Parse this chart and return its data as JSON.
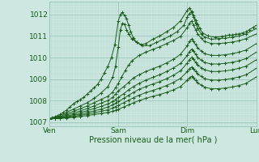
{
  "title": "",
  "xlabel": "Pression niveau de la mer( hPa )",
  "bg_color": "#cce8e0",
  "grid_minor_color": "#b8d8d0",
  "grid_major_color": "#99c4b8",
  "line_color": "#1a5c1a",
  "ylim": [
    1006.8,
    1012.6
  ],
  "xlim": [
    0.0,
    3.0
  ],
  "xtick_positions": [
    0,
    1,
    2,
    3
  ],
  "xtick_labels": [
    "Ven",
    "Sam",
    "Dim",
    "Lun"
  ],
  "ytick_positions": [
    1007,
    1008,
    1009,
    1010,
    1011,
    1012
  ],
  "series": [
    {
      "points": [
        [
          0.0,
          1007.15
        ],
        [
          0.04,
          1007.2
        ],
        [
          0.08,
          1007.25
        ],
        [
          0.12,
          1007.3
        ],
        [
          0.16,
          1007.35
        ],
        [
          0.2,
          1007.45
        ],
        [
          0.25,
          1007.55
        ],
        [
          0.3,
          1007.7
        ],
        [
          0.35,
          1007.85
        ],
        [
          0.4,
          1007.95
        ],
        [
          0.45,
          1008.05
        ],
        [
          0.5,
          1008.15
        ],
        [
          0.55,
          1008.3
        ],
        [
          0.6,
          1008.45
        ],
        [
          0.65,
          1008.6
        ],
        [
          0.7,
          1008.75
        ],
        [
          0.75,
          1009.0
        ],
        [
          0.8,
          1009.3
        ],
        [
          0.85,
          1009.6
        ],
        [
          0.9,
          1010.0
        ],
        [
          0.95,
          1010.6
        ],
        [
          1.0,
          1011.7
        ],
        [
          1.03,
          1012.0
        ],
        [
          1.06,
          1012.1
        ],
        [
          1.09,
          1011.95
        ],
        [
          1.12,
          1011.8
        ],
        [
          1.15,
          1011.5
        ],
        [
          1.18,
          1011.2
        ],
        [
          1.22,
          1010.9
        ],
        [
          1.27,
          1010.7
        ],
        [
          1.33,
          1010.6
        ],
        [
          1.4,
          1010.65
        ],
        [
          1.5,
          1010.85
        ],
        [
          1.6,
          1011.0
        ],
        [
          1.7,
          1011.2
        ],
        [
          1.8,
          1011.4
        ],
        [
          1.9,
          1011.7
        ],
        [
          2.0,
          1012.2
        ],
        [
          2.03,
          1012.3
        ],
        [
          2.06,
          1012.15
        ],
        [
          2.09,
          1011.95
        ],
        [
          2.12,
          1011.75
        ],
        [
          2.15,
          1011.55
        ],
        [
          2.18,
          1011.35
        ],
        [
          2.22,
          1011.15
        ],
        [
          2.3,
          1011.0
        ],
        [
          2.4,
          1010.95
        ],
        [
          2.5,
          1010.98
        ],
        [
          2.55,
          1011.0
        ],
        [
          2.6,
          1011.05
        ],
        [
          2.65,
          1011.05
        ],
        [
          2.7,
          1011.08
        ],
        [
          2.75,
          1011.1
        ],
        [
          2.8,
          1011.15
        ],
        [
          2.85,
          1011.2
        ],
        [
          2.9,
          1011.3
        ],
        [
          2.95,
          1011.4
        ],
        [
          3.0,
          1011.5
        ]
      ]
    },
    {
      "points": [
        [
          0.0,
          1007.15
        ],
        [
          0.08,
          1007.2
        ],
        [
          0.16,
          1007.3
        ],
        [
          0.25,
          1007.45
        ],
        [
          0.35,
          1007.6
        ],
        [
          0.45,
          1007.75
        ],
        [
          0.55,
          1007.9
        ],
        [
          0.65,
          1008.1
        ],
        [
          0.75,
          1008.35
        ],
        [
          0.85,
          1008.65
        ],
        [
          0.92,
          1009.1
        ],
        [
          0.96,
          1009.6
        ],
        [
          1.0,
          1010.5
        ],
        [
          1.03,
          1011.3
        ],
        [
          1.06,
          1011.6
        ],
        [
          1.09,
          1011.55
        ],
        [
          1.12,
          1011.3
        ],
        [
          1.15,
          1011.1
        ],
        [
          1.2,
          1010.85
        ],
        [
          1.27,
          1010.7
        ],
        [
          1.35,
          1010.55
        ],
        [
          1.45,
          1010.55
        ],
        [
          1.55,
          1010.7
        ],
        [
          1.65,
          1010.85
        ],
        [
          1.75,
          1011.0
        ],
        [
          1.85,
          1011.2
        ],
        [
          1.95,
          1011.5
        ],
        [
          2.0,
          1011.9
        ],
        [
          2.03,
          1012.05
        ],
        [
          2.06,
          1012.1
        ],
        [
          2.09,
          1011.9
        ],
        [
          2.12,
          1011.6
        ],
        [
          2.15,
          1011.35
        ],
        [
          2.2,
          1011.1
        ],
        [
          2.25,
          1010.95
        ],
        [
          2.35,
          1010.85
        ],
        [
          2.45,
          1010.88
        ],
        [
          2.55,
          1010.9
        ],
        [
          2.65,
          1010.95
        ],
        [
          2.75,
          1011.0
        ],
        [
          2.85,
          1011.1
        ],
        [
          3.0,
          1011.35
        ]
      ]
    },
    {
      "points": [
        [
          0.0,
          1007.15
        ],
        [
          0.08,
          1007.18
        ],
        [
          0.16,
          1007.25
        ],
        [
          0.25,
          1007.38
        ],
        [
          0.35,
          1007.5
        ],
        [
          0.45,
          1007.62
        ],
        [
          0.55,
          1007.75
        ],
        [
          0.65,
          1007.9
        ],
        [
          0.75,
          1008.05
        ],
        [
          0.85,
          1008.2
        ],
        [
          0.92,
          1008.4
        ],
        [
          0.96,
          1008.6
        ],
        [
          1.0,
          1008.8
        ],
        [
          1.05,
          1009.1
        ],
        [
          1.1,
          1009.4
        ],
        [
          1.15,
          1009.65
        ],
        [
          1.2,
          1009.85
        ],
        [
          1.3,
          1010.1
        ],
        [
          1.4,
          1010.25
        ],
        [
          1.5,
          1010.38
        ],
        [
          1.6,
          1010.5
        ],
        [
          1.7,
          1010.65
        ],
        [
          1.8,
          1010.8
        ],
        [
          1.9,
          1010.98
        ],
        [
          2.0,
          1011.4
        ],
        [
          2.03,
          1011.6
        ],
        [
          2.06,
          1011.7
        ],
        [
          2.09,
          1011.5
        ],
        [
          2.12,
          1011.3
        ],
        [
          2.15,
          1011.1
        ],
        [
          2.2,
          1010.9
        ],
        [
          2.25,
          1010.75
        ],
        [
          2.35,
          1010.65
        ],
        [
          2.45,
          1010.65
        ],
        [
          2.55,
          1010.68
        ],
        [
          2.65,
          1010.72
        ],
        [
          2.75,
          1010.78
        ],
        [
          2.85,
          1010.88
        ],
        [
          3.0,
          1011.1
        ]
      ]
    },
    {
      "points": [
        [
          0.0,
          1007.15
        ],
        [
          0.08,
          1007.18
        ],
        [
          0.16,
          1007.22
        ],
        [
          0.25,
          1007.32
        ],
        [
          0.35,
          1007.42
        ],
        [
          0.45,
          1007.52
        ],
        [
          0.55,
          1007.63
        ],
        [
          0.65,
          1007.75
        ],
        [
          0.75,
          1007.88
        ],
        [
          0.85,
          1008.0
        ],
        [
          0.92,
          1008.15
        ],
        [
          0.96,
          1008.3
        ],
        [
          1.0,
          1008.45
        ],
        [
          1.08,
          1008.65
        ],
        [
          1.15,
          1008.85
        ],
        [
          1.22,
          1009.05
        ],
        [
          1.3,
          1009.2
        ],
        [
          1.4,
          1009.35
        ],
        [
          1.5,
          1009.48
        ],
        [
          1.6,
          1009.6
        ],
        [
          1.7,
          1009.75
        ],
        [
          1.8,
          1009.92
        ],
        [
          1.9,
          1010.15
        ],
        [
          2.0,
          1010.55
        ],
        [
          2.03,
          1010.75
        ],
        [
          2.06,
          1010.85
        ],
        [
          2.09,
          1010.75
        ],
        [
          2.12,
          1010.6
        ],
        [
          2.15,
          1010.45
        ],
        [
          2.2,
          1010.3
        ],
        [
          2.25,
          1010.18
        ],
        [
          2.35,
          1010.1
        ],
        [
          2.45,
          1010.1
        ],
        [
          2.55,
          1010.13
        ],
        [
          2.65,
          1010.18
        ],
        [
          2.75,
          1010.25
        ],
        [
          2.85,
          1010.35
        ],
        [
          3.0,
          1010.65
        ]
      ]
    },
    {
      "points": [
        [
          0.0,
          1007.15
        ],
        [
          0.08,
          1007.17
        ],
        [
          0.16,
          1007.2
        ],
        [
          0.25,
          1007.27
        ],
        [
          0.35,
          1007.35
        ],
        [
          0.45,
          1007.44
        ],
        [
          0.55,
          1007.53
        ],
        [
          0.65,
          1007.63
        ],
        [
          0.75,
          1007.73
        ],
        [
          0.85,
          1007.84
        ],
        [
          0.92,
          1007.95
        ],
        [
          0.96,
          1008.05
        ],
        [
          1.0,
          1008.15
        ],
        [
          1.08,
          1008.32
        ],
        [
          1.15,
          1008.5
        ],
        [
          1.22,
          1008.65
        ],
        [
          1.3,
          1008.8
        ],
        [
          1.4,
          1008.95
        ],
        [
          1.5,
          1009.08
        ],
        [
          1.6,
          1009.2
        ],
        [
          1.7,
          1009.35
        ],
        [
          1.8,
          1009.52
        ],
        [
          1.9,
          1009.72
        ],
        [
          2.0,
          1010.1
        ],
        [
          2.03,
          1010.28
        ],
        [
          2.06,
          1010.38
        ],
        [
          2.09,
          1010.3
        ],
        [
          2.12,
          1010.15
        ],
        [
          2.15,
          1010.0
        ],
        [
          2.2,
          1009.88
        ],
        [
          2.25,
          1009.77
        ],
        [
          2.35,
          1009.7
        ],
        [
          2.45,
          1009.7
        ],
        [
          2.55,
          1009.73
        ],
        [
          2.65,
          1009.78
        ],
        [
          2.75,
          1009.85
        ],
        [
          2.85,
          1009.95
        ],
        [
          3.0,
          1010.25
        ]
      ]
    },
    {
      "points": [
        [
          0.0,
          1007.15
        ],
        [
          0.08,
          1007.17
        ],
        [
          0.16,
          1007.19
        ],
        [
          0.25,
          1007.24
        ],
        [
          0.35,
          1007.3
        ],
        [
          0.45,
          1007.37
        ],
        [
          0.55,
          1007.44
        ],
        [
          0.65,
          1007.52
        ],
        [
          0.75,
          1007.6
        ],
        [
          0.85,
          1007.7
        ],
        [
          0.92,
          1007.8
        ],
        [
          0.96,
          1007.88
        ],
        [
          1.0,
          1007.96
        ],
        [
          1.08,
          1008.1
        ],
        [
          1.15,
          1008.25
        ],
        [
          1.22,
          1008.38
        ],
        [
          1.3,
          1008.52
        ],
        [
          1.4,
          1008.65
        ],
        [
          1.5,
          1008.77
        ],
        [
          1.6,
          1008.88
        ],
        [
          1.7,
          1009.02
        ],
        [
          1.8,
          1009.18
        ],
        [
          1.9,
          1009.38
        ],
        [
          2.0,
          1009.75
        ],
        [
          2.03,
          1009.9
        ],
        [
          2.06,
          1010.0
        ],
        [
          2.09,
          1009.92
        ],
        [
          2.12,
          1009.78
        ],
        [
          2.15,
          1009.65
        ],
        [
          2.2,
          1009.53
        ],
        [
          2.25,
          1009.43
        ],
        [
          2.35,
          1009.35
        ],
        [
          2.45,
          1009.35
        ],
        [
          2.55,
          1009.38
        ],
        [
          2.65,
          1009.43
        ],
        [
          2.75,
          1009.5
        ],
        [
          2.85,
          1009.6
        ],
        [
          3.0,
          1009.9
        ]
      ]
    },
    {
      "points": [
        [
          0.0,
          1007.15
        ],
        [
          0.08,
          1007.16
        ],
        [
          0.16,
          1007.18
        ],
        [
          0.25,
          1007.21
        ],
        [
          0.35,
          1007.26
        ],
        [
          0.45,
          1007.31
        ],
        [
          0.55,
          1007.37
        ],
        [
          0.65,
          1007.43
        ],
        [
          0.75,
          1007.5
        ],
        [
          0.85,
          1007.57
        ],
        [
          0.92,
          1007.65
        ],
        [
          0.96,
          1007.72
        ],
        [
          1.0,
          1007.78
        ],
        [
          1.08,
          1007.9
        ],
        [
          1.15,
          1008.02
        ],
        [
          1.22,
          1008.13
        ],
        [
          1.3,
          1008.25
        ],
        [
          1.4,
          1008.37
        ],
        [
          1.5,
          1008.47
        ],
        [
          1.6,
          1008.58
        ],
        [
          1.7,
          1008.7
        ],
        [
          1.8,
          1008.85
        ],
        [
          1.9,
          1009.03
        ],
        [
          2.0,
          1009.35
        ],
        [
          2.03,
          1009.48
        ],
        [
          2.06,
          1009.55
        ],
        [
          2.09,
          1009.48
        ],
        [
          2.12,
          1009.35
        ],
        [
          2.15,
          1009.23
        ],
        [
          2.2,
          1009.12
        ],
        [
          2.25,
          1009.02
        ],
        [
          2.35,
          1008.95
        ],
        [
          2.45,
          1008.95
        ],
        [
          2.55,
          1008.98
        ],
        [
          2.65,
          1009.03
        ],
        [
          2.75,
          1009.1
        ],
        [
          2.85,
          1009.2
        ],
        [
          3.0,
          1009.5
        ]
      ]
    },
    {
      "points": [
        [
          0.0,
          1007.15
        ],
        [
          0.08,
          1007.16
        ],
        [
          0.16,
          1007.17
        ],
        [
          0.25,
          1007.19
        ],
        [
          0.35,
          1007.22
        ],
        [
          0.45,
          1007.26
        ],
        [
          0.55,
          1007.3
        ],
        [
          0.65,
          1007.35
        ],
        [
          0.75,
          1007.4
        ],
        [
          0.85,
          1007.45
        ],
        [
          0.92,
          1007.5
        ],
        [
          0.96,
          1007.55
        ],
        [
          1.0,
          1007.6
        ],
        [
          1.08,
          1007.7
        ],
        [
          1.15,
          1007.8
        ],
        [
          1.22,
          1007.9
        ],
        [
          1.3,
          1008.0
        ],
        [
          1.4,
          1008.1
        ],
        [
          1.5,
          1008.2
        ],
        [
          1.6,
          1008.28
        ],
        [
          1.7,
          1008.38
        ],
        [
          1.8,
          1008.5
        ],
        [
          1.9,
          1008.65
        ],
        [
          2.0,
          1008.95
        ],
        [
          2.03,
          1009.05
        ],
        [
          2.06,
          1009.12
        ],
        [
          2.09,
          1009.05
        ],
        [
          2.12,
          1008.93
        ],
        [
          2.15,
          1008.82
        ],
        [
          2.2,
          1008.72
        ],
        [
          2.25,
          1008.62
        ],
        [
          2.35,
          1008.55
        ],
        [
          2.45,
          1008.55
        ],
        [
          2.55,
          1008.58
        ],
        [
          2.65,
          1008.63
        ],
        [
          2.75,
          1008.7
        ],
        [
          2.85,
          1008.8
        ],
        [
          3.0,
          1009.1
        ]
      ]
    }
  ]
}
